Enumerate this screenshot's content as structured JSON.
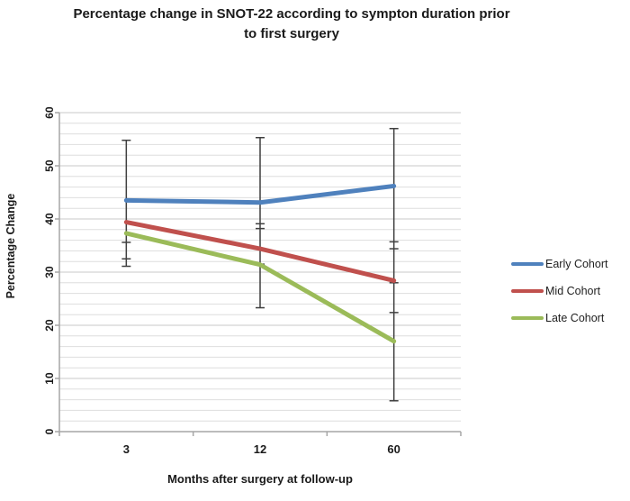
{
  "title": {
    "line1": "Percentage change in SNOT-22 according to sympton duration prior",
    "line2": "to first surgery"
  },
  "chart_data": {
    "type": "line",
    "title": "Percentage change in SNOT-22 according to sympton duration prior to first surgery",
    "xlabel": "Months after surgery at follow-up",
    "ylabel": "Percentage Change",
    "categories": [
      "3",
      "12",
      "60"
    ],
    "series": [
      {
        "name": "Early Cohort",
        "color": "#4F81BD",
        "values": [
          43.5,
          43.1,
          46.2
        ]
      },
      {
        "name": "Mid Cohort",
        "color": "#C0504D",
        "values": [
          39.4,
          34.4,
          28.4
        ]
      },
      {
        "name": "Late Cohort",
        "color": "#9BBB59",
        "values": [
          37.3,
          31.4,
          17.0
        ]
      }
    ],
    "error_bars": [
      {
        "x_index": 0,
        "high": 54.8,
        "low": 31.1,
        "cap_values": [
          54.8,
          35.6,
          32.5,
          31.1
        ]
      },
      {
        "x_index": 1,
        "high": 55.3,
        "low": 23.3,
        "cap_values": [
          55.3,
          39.1,
          38.2,
          31.5,
          23.3
        ]
      },
      {
        "x_index": 2,
        "high": 57.0,
        "low": 5.8,
        "cap_values": [
          57.0,
          35.7,
          34.4,
          28.0,
          22.4,
          5.8
        ]
      }
    ],
    "ylim": [
      0,
      60
    ],
    "y_ticks": [
      0,
      10,
      20,
      30,
      40,
      50,
      60
    ],
    "y_minor_step": 2,
    "grid": true,
    "legend_position": "right",
    "colors": {
      "minor_grid": "#DEDEDE",
      "major_grid": "#C9C9C9",
      "axis": "#A6A6A6",
      "error_bar": "#3F3F3F",
      "tick_text": "#1a1a1a"
    }
  }
}
